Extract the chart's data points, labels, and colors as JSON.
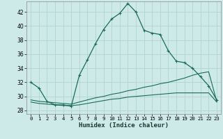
{
  "xlabel": "Humidex (Indice chaleur)",
  "bg_color": "#ceeae8",
  "grid_color": "#b0d4d0",
  "line_color": "#1a6b5a",
  "xlim": [
    -0.5,
    23.5
  ],
  "ylim": [
    27.5,
    43.5
  ],
  "xticks": [
    0,
    1,
    2,
    3,
    4,
    5,
    6,
    7,
    8,
    9,
    10,
    11,
    12,
    13,
    14,
    15,
    16,
    17,
    18,
    19,
    20,
    21,
    22,
    23
  ],
  "yticks": [
    28,
    30,
    32,
    34,
    36,
    38,
    40,
    42
  ],
  "curve1_x": [
    0,
    1,
    2,
    3,
    4,
    5,
    6,
    7,
    8,
    9,
    10,
    11,
    12,
    13,
    14,
    15,
    16,
    17,
    18,
    19,
    20,
    21,
    22,
    23
  ],
  "curve1_y": [
    32.0,
    31.2,
    29.3,
    28.8,
    28.8,
    28.6,
    33.0,
    35.2,
    37.5,
    39.5,
    41.0,
    41.8,
    43.2,
    42.0,
    39.4,
    39.0,
    38.8,
    36.5,
    35.0,
    34.8,
    34.0,
    32.8,
    31.5,
    29.5
  ],
  "curve2_x": [
    0,
    1,
    2,
    3,
    4,
    5,
    6,
    7,
    8,
    9,
    10,
    11,
    12,
    13,
    14,
    15,
    16,
    17,
    18,
    19,
    20,
    21,
    22,
    23
  ],
  "curve2_y": [
    29.5,
    29.3,
    29.2,
    29.1,
    29.0,
    28.9,
    29.2,
    29.5,
    29.8,
    30.0,
    30.3,
    30.5,
    30.8,
    31.0,
    31.3,
    31.5,
    31.8,
    32.0,
    32.3,
    32.6,
    33.0,
    33.3,
    33.5,
    29.3
  ],
  "curve3_x": [
    0,
    1,
    2,
    3,
    4,
    5,
    6,
    7,
    8,
    9,
    10,
    11,
    12,
    13,
    14,
    15,
    16,
    17,
    18,
    19,
    20,
    21,
    22,
    23
  ],
  "curve3_y": [
    29.2,
    29.0,
    28.9,
    28.8,
    28.7,
    28.7,
    28.8,
    29.0,
    29.2,
    29.4,
    29.6,
    29.7,
    29.9,
    30.0,
    30.1,
    30.2,
    30.3,
    30.4,
    30.5,
    30.5,
    30.5,
    30.5,
    30.5,
    29.2
  ]
}
